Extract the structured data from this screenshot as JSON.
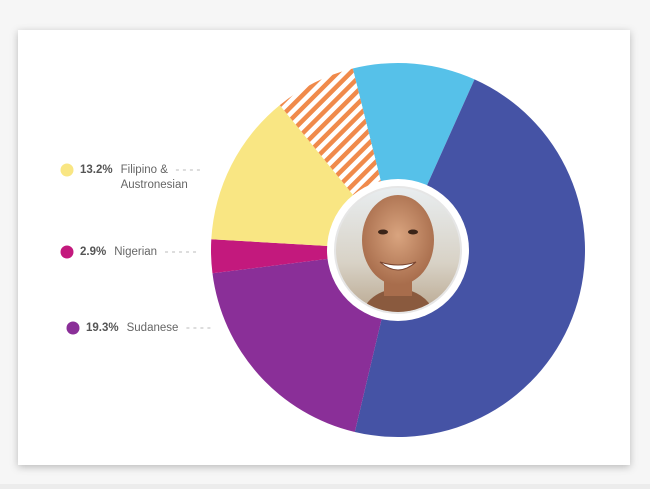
{
  "chart_data": {
    "type": "pie",
    "donut": true,
    "categories": [
      null,
      null,
      "Sudanese",
      "Nigerian",
      "Filipino & Austronesian",
      null
    ],
    "values": [
      10.6,
      47.0,
      19.3,
      2.9,
      13.2,
      7.0
    ],
    "value_labels": [
      null,
      null,
      "19.3%",
      "2.9%",
      "13.2%",
      null
    ],
    "colors": [
      "#56c1e9",
      "#4553a5",
      "#8a2f98",
      "#c3197d",
      "#f9e683",
      "#f08a4b"
    ],
    "hatched": [
      false,
      false,
      false,
      false,
      false,
      true
    ]
  }
}
